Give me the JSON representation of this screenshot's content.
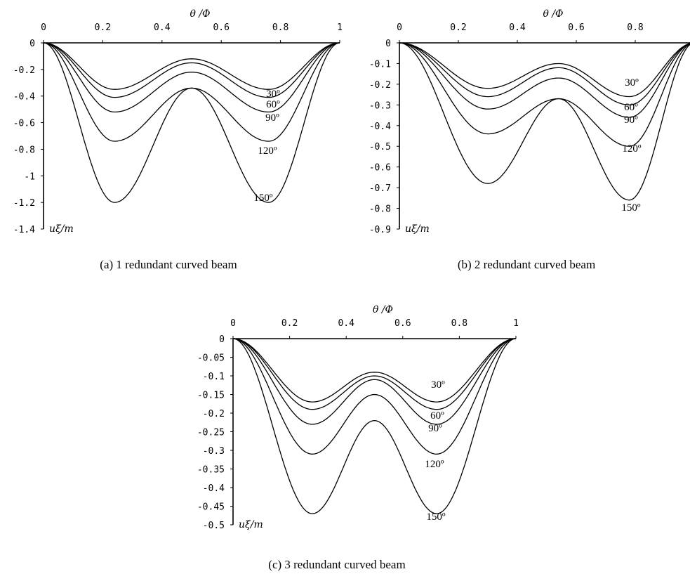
{
  "chart_data": [
    {
      "type": "line",
      "caption": "(a) 1 redundant curved beam",
      "xlabel": "θ /Φ",
      "ylabel": "uξ/m",
      "xlim": [
        0,
        1
      ],
      "ylim": [
        -1.4,
        0
      ],
      "x_ticks": [
        "0",
        "0.2",
        "0.4",
        "0.6",
        "0.8",
        "1"
      ],
      "y_ticks": [
        "0",
        "-0.2",
        "-0.4",
        "-0.6",
        "-0.8",
        "-1",
        "-1.2",
        "-1.4"
      ],
      "x_positions": [
        0.24,
        0.5,
        0.76
      ],
      "series": [
        {
          "name": "30º",
          "values": [
            -0.35,
            -0.12,
            -0.35
          ]
        },
        {
          "name": "60º",
          "values": [
            -0.41,
            -0.15,
            -0.41
          ]
        },
        {
          "name": "90º",
          "values": [
            -0.52,
            -0.22,
            -0.52
          ]
        },
        {
          "name": "120º",
          "values": [
            -0.74,
            -0.34,
            -0.74
          ]
        },
        {
          "name": "150º",
          "values": [
            -1.2,
            -0.34,
            -1.2
          ]
        }
      ]
    },
    {
      "type": "line",
      "caption": "(b) 2 redundant curved beam",
      "xlabel": "θ /Φ",
      "ylabel": "uξ/m",
      "xlim": [
        0,
        1
      ],
      "ylim": [
        -0.9,
        0
      ],
      "x_ticks": [
        "0",
        "0.2",
        "0.4",
        "0.6",
        "0.8"
      ],
      "y_ticks": [
        "0",
        "-0.1",
        "-0.2",
        "-0.3",
        "-0.4",
        "-0.5",
        "-0.6",
        "-0.7",
        "-0.8",
        "-0.9"
      ],
      "x_positions": [
        0.3,
        0.54,
        0.78
      ],
      "series": [
        {
          "name": "30º",
          "values": [
            -0.22,
            -0.1,
            -0.26
          ]
        },
        {
          "name": "60º",
          "values": [
            -0.26,
            -0.12,
            -0.3
          ]
        },
        {
          "name": "90º",
          "values": [
            -0.32,
            -0.17,
            -0.36
          ]
        },
        {
          "name": "120º",
          "values": [
            -0.44,
            -0.27,
            -0.5
          ]
        },
        {
          "name": "150º",
          "values": [
            -0.68,
            -0.27,
            -0.76
          ]
        }
      ]
    },
    {
      "type": "line",
      "caption": "(c) 3 redundant curved beam",
      "xlabel": "θ /Φ",
      "ylabel": "uξ/m",
      "xlim": [
        0,
        1
      ],
      "ylim": [
        -0.5,
        0
      ],
      "x_ticks": [
        "0",
        "0.2",
        "0.4",
        "0.6",
        "0.8",
        "1"
      ],
      "y_ticks": [
        "0",
        "-0.05",
        "-0.1",
        "-0.15",
        "-0.2",
        "-0.25",
        "-0.3",
        "-0.35",
        "-0.4",
        "-0.45",
        "-0.5"
      ],
      "x_positions": [
        0.28,
        0.5,
        0.72
      ],
      "series": [
        {
          "name": "30º",
          "values": [
            -0.17,
            -0.09,
            -0.17
          ]
        },
        {
          "name": "60º",
          "values": [
            -0.19,
            -0.1,
            -0.19
          ]
        },
        {
          "name": "90º",
          "values": [
            -0.23,
            -0.11,
            -0.23
          ]
        },
        {
          "name": "120º",
          "values": [
            -0.31,
            -0.15,
            -0.31
          ]
        },
        {
          "name": "150º",
          "values": [
            -0.47,
            -0.22,
            -0.47
          ]
        }
      ]
    }
  ]
}
